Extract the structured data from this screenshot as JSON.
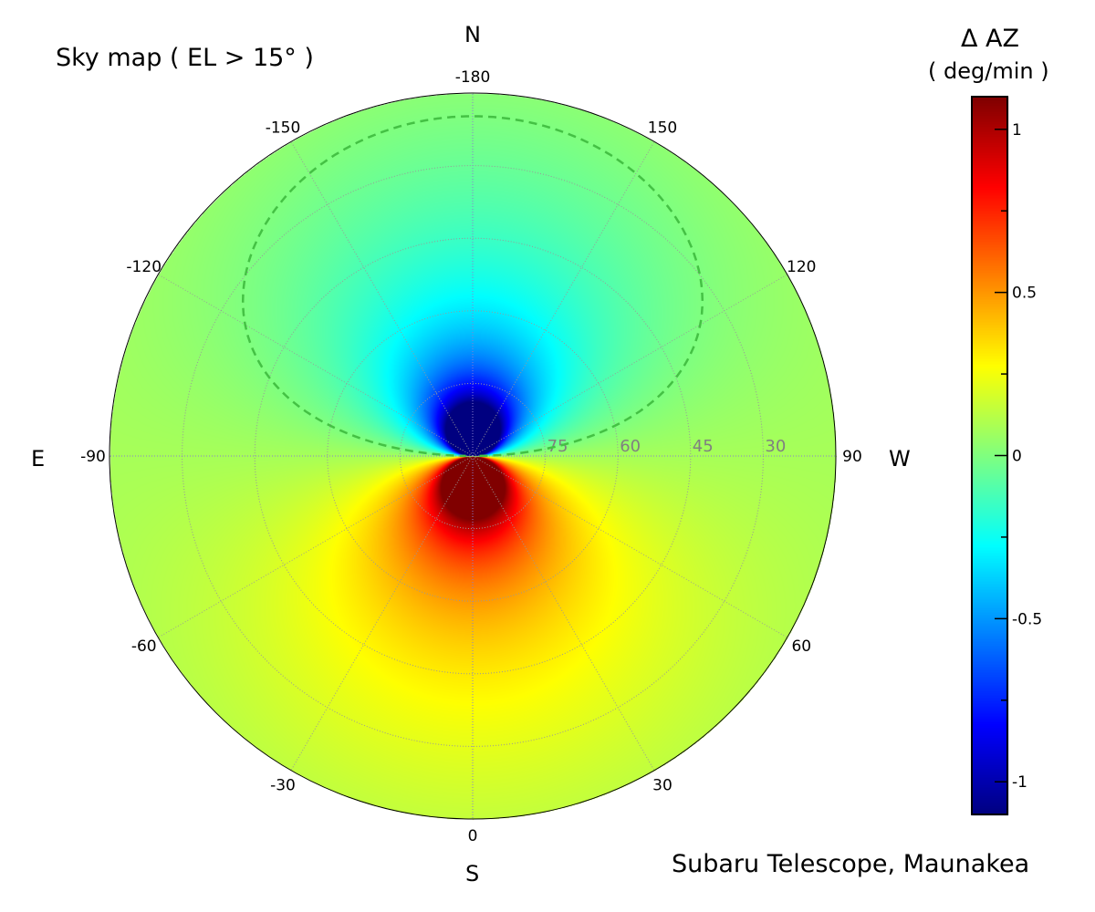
{
  "chart_data": {
    "type": "heatmap",
    "projection": "polar",
    "title": "Sky map  ( EL > 15° )",
    "site_label": "Subaru Telescope, Maunakea",
    "compass": {
      "north": "N",
      "south": "S",
      "east": "E",
      "west": "W"
    },
    "azimuth_ticks": [
      0,
      30,
      60,
      90,
      120,
      150,
      -180,
      -150,
      -120,
      -90,
      -60,
      -30
    ],
    "elevation_ticks": [
      75,
      60,
      45,
      30
    ],
    "elevation_range": [
      15,
      90
    ],
    "colorbar": {
      "title": "Δ AZ",
      "unit": "( deg/min )",
      "range": [
        -1.1,
        1.1
      ],
      "ticks": [
        1,
        0.5,
        0,
        -0.5,
        -1
      ],
      "tick_labels": [
        "1",
        "0.5",
        "0",
        "-0.5",
        "-1"
      ],
      "minor_ticks": [
        0.75,
        0.25,
        -0.25,
        -0.75
      ],
      "colormap": "jet"
    },
    "contour": {
      "level": 0,
      "style": "dashed",
      "color": "#44c144"
    },
    "grid": true,
    "grid_color": "#999999"
  }
}
